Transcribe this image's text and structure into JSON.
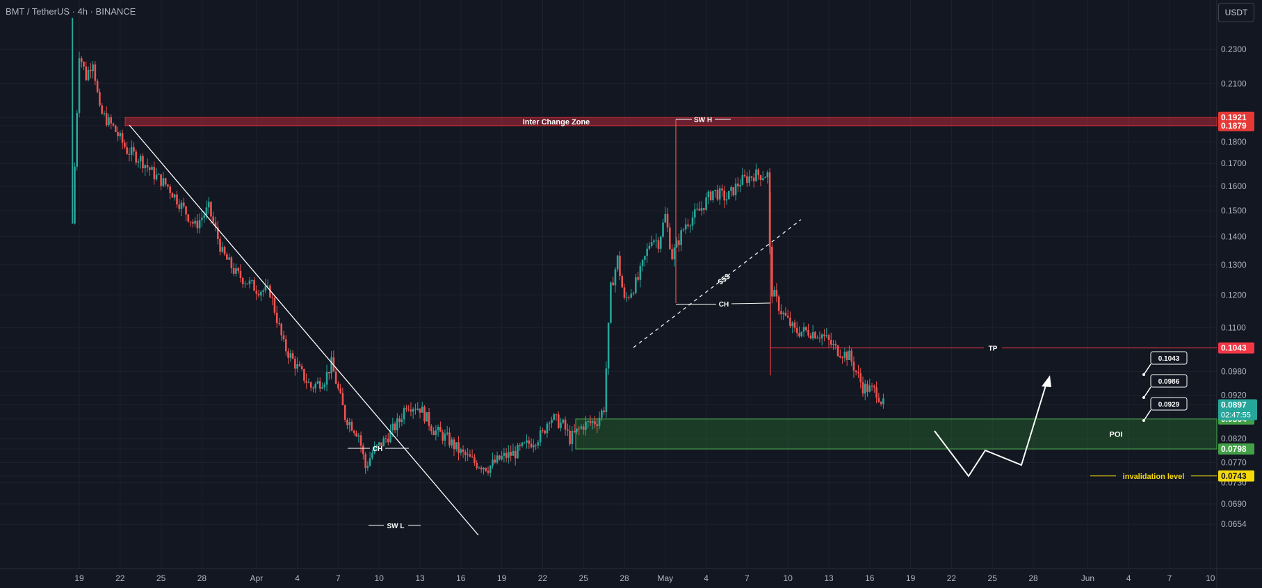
{
  "header": {
    "symbol_line": "BMT / TetherUS · 4h · BINANCE",
    "currency_button": "USDT"
  },
  "colors": {
    "background": "#131722",
    "grid": "#1e222d",
    "up": "#26a69a",
    "down": "#ef5350",
    "zone_red": "#b2283a",
    "poi_green": "#1b5e20",
    "poi_border": "#4caf50",
    "invalidation": "#f5d90a",
    "tp_line": "#f23645",
    "white": "#ffffff"
  },
  "chart_data": {
    "type": "candlestick",
    "title": "BMT / TetherUS · 4h · BINANCE",
    "y_scale": "log",
    "ylim": [
      0.0654,
      0.25
    ],
    "y_ticks": [
      "0.2300",
      "0.2100",
      "0.1921",
      "0.1879",
      "0.1800",
      "0.1700",
      "0.1600",
      "0.1500",
      "0.1400",
      "0.1300",
      "0.1200",
      "0.1100",
      "0.1043",
      "0.0980",
      "0.0920",
      "0.0897",
      "0.0864",
      "0.0820",
      "0.0798",
      "0.0770",
      "0.0743",
      "0.0730",
      "0.0690",
      "0.0654"
    ],
    "x_ticks": [
      "19",
      "22",
      "25",
      "28",
      "Apr",
      "4",
      "7",
      "10",
      "13",
      "16",
      "19",
      "22",
      "25",
      "28",
      "May",
      "4",
      "7",
      "10",
      "13",
      "16",
      "19",
      "22",
      "25",
      "28",
      "Jun",
      "4",
      "7",
      "10"
    ],
    "x_range": [
      "2025-03-17T12:00",
      "2025-06-10T12:00"
    ],
    "price_path": [
      [
        "2025-03-18T12:00",
        0.145,
        0.25
      ],
      [
        "2025-03-19T00:00",
        0.228
      ],
      [
        "2025-03-19T12:00",
        0.214
      ],
      [
        "2025-03-20T00:00",
        0.224
      ],
      [
        "2025-03-20T12:00",
        0.195
      ],
      [
        "2025-03-21T12:00",
        0.187
      ],
      [
        "2025-03-22T12:00",
        0.176
      ],
      [
        "2025-03-23T12:00",
        0.172
      ],
      [
        "2025-03-24T12:00",
        0.165
      ],
      [
        "2025-03-25T12:00",
        0.16
      ],
      [
        "2025-03-26T12:00",
        0.152
      ],
      [
        "2025-03-27T12:00",
        0.144
      ],
      [
        "2025-03-28T12:00",
        0.151
      ],
      [
        "2025-03-29T12:00",
        0.134
      ],
      [
        "2025-03-30T12:00",
        0.127
      ],
      [
        "2025-04-01T00:00",
        0.122
      ],
      [
        "2025-04-02T00:00",
        0.121
      ],
      [
        "2025-04-03T00:00",
        0.105
      ],
      [
        "2025-04-04T00:00",
        0.099
      ],
      [
        "2025-04-05T00:00",
        0.094
      ],
      [
        "2025-04-06T00:00",
        0.096
      ],
      [
        "2025-04-06T12:00",
        0.1
      ],
      [
        "2025-04-07T12:00",
        0.087
      ],
      [
        "2025-04-08T12:00",
        0.083
      ],
      [
        "2025-04-09T00:00",
        0.076
      ],
      [
        "2025-04-09T12:00",
        0.079
      ],
      [
        "2025-04-10T12:00",
        0.082
      ],
      [
        "2025-04-11T12:00",
        0.086
      ],
      [
        "2025-04-12T00:00",
        0.09
      ],
      [
        "2025-04-13T00:00",
        0.089
      ],
      [
        "2025-04-14T00:00",
        0.084
      ],
      [
        "2025-04-15T00:00",
        0.082
      ],
      [
        "2025-04-16T00:00",
        0.079
      ],
      [
        "2025-04-17T00:00",
        0.077
      ],
      [
        "2025-04-18T00:00",
        0.076
      ],
      [
        "2025-04-19T00:00",
        0.078
      ],
      [
        "2025-04-20T00:00",
        0.079
      ],
      [
        "2025-04-21T00:00",
        0.081
      ],
      [
        "2025-04-22T00:00",
        0.083
      ],
      [
        "2025-04-22T12:00",
        0.087
      ],
      [
        "2025-04-23T12:00",
        0.085
      ],
      [
        "2025-04-24T00:00",
        0.082
      ],
      [
        "2025-04-25T00:00",
        0.085
      ],
      [
        "2025-04-26T00:00",
        0.086
      ],
      [
        "2025-04-26T12:00",
        0.089
      ],
      [
        "2025-04-27T00:00",
        0.122
      ],
      [
        "2025-04-27T12:00",
        0.132
      ],
      [
        "2025-04-28T00:00",
        0.118
      ],
      [
        "2025-04-29T00:00",
        0.125
      ],
      [
        "2025-04-30T00:00",
        0.14
      ],
      [
        "2025-04-30T12:00",
        0.138
      ],
      [
        "2025-05-01T00:00",
        0.148
      ],
      [
        "2025-05-01T12:00",
        0.133
      ],
      [
        "2025-05-02T12:00",
        0.145
      ],
      [
        "2025-05-03T12:00",
        0.15
      ],
      [
        "2025-05-04T12:00",
        0.158
      ],
      [
        "2025-05-05T12:00",
        0.155
      ],
      [
        "2025-05-06T12:00",
        0.162
      ],
      [
        "2025-05-07T12:00",
        0.165
      ],
      [
        "2025-05-08T12:00",
        0.165
      ],
      [
        "2025-05-08T18:00",
        0.122
      ],
      [
        "2025-05-09T12:00",
        0.115
      ],
      [
        "2025-05-10T12:00",
        0.109
      ],
      [
        "2025-05-11T12:00",
        0.109
      ],
      [
        "2025-05-12T12:00",
        0.108
      ],
      [
        "2025-05-13T12:00",
        0.104
      ],
      [
        "2025-05-14T12:00",
        0.102
      ],
      [
        "2025-05-15T12:00",
        0.094
      ],
      [
        "2025-05-16T12:00",
        0.093
      ],
      [
        "2025-05-17T00:00",
        0.0897
      ]
    ],
    "last_price": "0.0897",
    "countdown": "02:47:55",
    "annotations": {
      "zone_label": "Inter Change Zone",
      "swing_high": "SW H",
      "swing_low": "SW L",
      "choch_1": "CH",
      "choch_2": "CH",
      "liquidity": "$$$",
      "tp": "TP",
      "poi": "POI",
      "invalidation": "invalidation level",
      "targets": [
        "0.1043",
        "0.0986",
        "0.0929"
      ]
    },
    "levels": {
      "zone_top": "0.1921",
      "zone_bottom": "0.1879",
      "tp_level": "0.1043",
      "poi_top": "0.0864",
      "poi_bottom": "0.0798",
      "invalidation": "0.0743"
    }
  }
}
